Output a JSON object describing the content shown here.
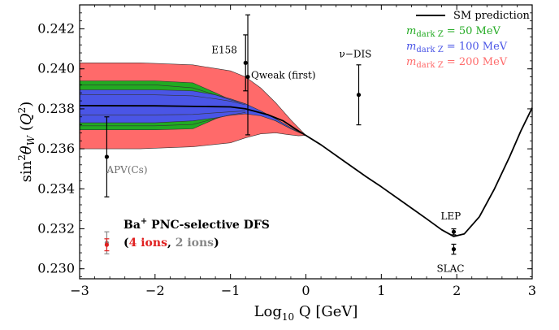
{
  "chart_data": {
    "type": "line",
    "xlabel": "Log",
    "xlabel_sub": "10",
    "xlabel_rest": " Q [GeV]",
    "ylabel_parts": [
      "sin",
      "2",
      "θ",
      "W",
      " (",
      "Q",
      "2",
      ")"
    ],
    "xlim": [
      -3,
      3
    ],
    "ylim": [
      0.2295,
      0.2432
    ],
    "x_ticks": [
      -3,
      -2,
      -1,
      0,
      1,
      2,
      3
    ],
    "x_tick_labels": [
      "−3",
      "−2",
      "−1",
      "0",
      "1",
      "2",
      "3"
    ],
    "y_ticks": [
      0.23,
      0.232,
      0.234,
      0.236,
      0.238,
      0.24,
      0.242
    ],
    "y_tick_labels": [
      "0.230",
      "0.232",
      "0.234",
      "0.236",
      "0.238",
      "0.240",
      "0.242"
    ],
    "legend": {
      "position": "top-right",
      "entries": [
        {
          "label": "SM prediction",
          "color": "#000000"
        },
        {
          "label_main": "m",
          "label_sub": "dark Z",
          "label_rest": " = 50 MeV",
          "color": "#22aa22"
        },
        {
          "label_main": "m",
          "label_sub": "dark Z",
          "label_rest": " = 100 MeV",
          "color": "#4a55e6"
        },
        {
          "label_main": "m",
          "label_sub": "dark Z",
          "label_rest": " = 200 MeV",
          "color": "#ff6a6a"
        }
      ]
    },
    "sm_curve": {
      "color": "#000000",
      "points": [
        [
          -3,
          0.23816
        ],
        [
          -2,
          0.23815
        ],
        [
          -1,
          0.2381
        ],
        [
          -0.8,
          0.238
        ],
        [
          -0.5,
          0.2377
        ],
        [
          -0.3,
          0.2374
        ],
        [
          -0.1,
          0.2369
        ],
        [
          0,
          0.23667
        ],
        [
          0.2,
          0.2362
        ],
        [
          0.5,
          0.2354
        ],
        [
          0.8,
          0.2346
        ],
        [
          1.0,
          0.2341
        ],
        [
          1.3,
          0.2333
        ],
        [
          1.6,
          0.2325
        ],
        [
          1.8,
          0.23195
        ],
        [
          1.96,
          0.23162
        ],
        [
          2.1,
          0.23175
        ],
        [
          2.3,
          0.2326
        ],
        [
          2.5,
          0.234
        ],
        [
          2.7,
          0.2356
        ],
        [
          2.85,
          0.2369
        ],
        [
          3.0,
          0.23805
        ]
      ]
    },
    "bands": [
      {
        "name": "200 MeV",
        "color": "#ff6a6a",
        "upper": [
          [
            -3,
            0.2403
          ],
          [
            -2.2,
            0.2403
          ],
          [
            -1.5,
            0.2402
          ],
          [
            -1.0,
            0.2399
          ],
          [
            -0.8,
            0.2396
          ],
          [
            -0.6,
            0.23905
          ],
          [
            -0.4,
            0.2383
          ],
          [
            -0.2,
            0.23745
          ],
          [
            0,
            0.23667
          ]
        ],
        "lower": [
          [
            -3,
            0.236
          ],
          [
            -2.2,
            0.236
          ],
          [
            -1.5,
            0.2361
          ],
          [
            -1.0,
            0.2363
          ],
          [
            -0.8,
            0.23655
          ],
          [
            -0.6,
            0.23675
          ],
          [
            -0.4,
            0.2368
          ],
          [
            -0.25,
            0.23672
          ],
          [
            -0.1,
            0.23665
          ],
          [
            0,
            0.23667
          ]
        ]
      },
      {
        "name": "50 MeV",
        "color": "#22aa22",
        "upper": [
          [
            -3,
            0.2394
          ],
          [
            -2.0,
            0.2394
          ],
          [
            -1.5,
            0.2393
          ],
          [
            -1.2,
            0.2388
          ],
          [
            -1.0,
            0.23845
          ],
          [
            -0.8,
            0.2382
          ],
          [
            -0.6,
            0.2379
          ],
          [
            -0.4,
            0.2375
          ],
          [
            -0.2,
            0.23705
          ],
          [
            0,
            0.23667
          ]
        ],
        "lower": [
          [
            -3,
            0.23695
          ],
          [
            -2.0,
            0.23695
          ],
          [
            -1.5,
            0.237
          ],
          [
            -1.2,
            0.2375
          ],
          [
            -1.0,
            0.23775
          ],
          [
            -0.8,
            0.23785
          ],
          [
            -0.6,
            0.2377
          ],
          [
            -0.4,
            0.2374
          ],
          [
            -0.2,
            0.237
          ],
          [
            0,
            0.23667
          ]
        ]
      },
      {
        "name": "100 MeV",
        "color": "#4a55e6",
        "upper": [
          [
            -3,
            0.23895
          ],
          [
            -2.0,
            0.23895
          ],
          [
            -1.5,
            0.2389
          ],
          [
            -1.2,
            0.2387
          ],
          [
            -1.0,
            0.2385
          ],
          [
            -0.8,
            0.23825
          ],
          [
            -0.6,
            0.2379
          ],
          [
            -0.4,
            0.2375
          ],
          [
            -0.2,
            0.23705
          ],
          [
            0,
            0.23667
          ]
        ],
        "lower": [
          [
            -3,
            0.2373
          ],
          [
            -2.0,
            0.2373
          ],
          [
            -1.5,
            0.2374
          ],
          [
            -1.2,
            0.23755
          ],
          [
            -1.0,
            0.23768
          ],
          [
            -0.8,
            0.23775
          ],
          [
            -0.6,
            0.23765
          ],
          [
            -0.4,
            0.2374
          ],
          [
            -0.2,
            0.237
          ],
          [
            0,
            0.23667
          ]
        ]
      }
    ],
    "inner_lines": [
      [
        [
          -3,
          0.2392
        ],
        [
          -2.0,
          0.2392
        ],
        [
          -1.5,
          0.23905
        ],
        [
          -1.2,
          0.2387
        ],
        [
          -1.0,
          0.23845
        ],
        [
          -0.8,
          0.23825
        ]
      ],
      [
        [
          -3,
          0.2387
        ],
        [
          -2.0,
          0.2387
        ],
        [
          -1.5,
          0.23865
        ],
        [
          -1.2,
          0.2385
        ],
        [
          -1.0,
          0.23838
        ],
        [
          -0.8,
          0.2382
        ]
      ],
      [
        [
          -3,
          0.2377
        ],
        [
          -2.0,
          0.2377
        ],
        [
          -1.5,
          0.23772
        ],
        [
          -1.2,
          0.2378
        ],
        [
          -1.0,
          0.23785
        ],
        [
          -0.8,
          0.2379
        ]
      ],
      [
        [
          -3,
          0.23715
        ],
        [
          -2.0,
          0.23715
        ],
        [
          -1.5,
          0.23722
        ],
        [
          -1.2,
          0.23752
        ],
        [
          -1.0,
          0.2377
        ],
        [
          -0.8,
          0.23782
        ]
      ]
    ],
    "data_points": [
      {
        "label": "APV(Cs)",
        "x": -2.64,
        "y": 0.2356,
        "err_up": 0.002,
        "err_down": 0.002,
        "color": "#000000",
        "label_color": "#6e6e6e"
      },
      {
        "label": "E158",
        "x": -0.8,
        "y": 0.2403,
        "err_up": 0.0014,
        "err_down": 0.0014,
        "color": "#000000"
      },
      {
        "label": "Qweak (first)",
        "x": -0.77,
        "y": 0.2396,
        "err_up": 0.0031,
        "err_down": 0.0029,
        "color": "#000000"
      },
      {
        "label": "ν−DIS",
        "x": 0.7,
        "y": 0.2387,
        "err_up": 0.0015,
        "err_down": 0.0015,
        "color": "#000000"
      },
      {
        "label": "LEP",
        "x": 1.96,
        "y": 0.23185,
        "err_up": 0.00015,
        "err_down": 0.00015,
        "color": "#000000"
      },
      {
        "label": "SLAC",
        "x": 1.96,
        "y": 0.23098,
        "err_up": 0.00025,
        "err_down": 0.00025,
        "color": "#000000"
      },
      {
        "label": "",
        "x": -2.64,
        "y": 0.2313,
        "err_up": 0.00055,
        "err_down": 0.00055,
        "color": "#888888"
      },
      {
        "label": "",
        "x": -2.64,
        "y": 0.2312,
        "err_up": 0.0003,
        "err_down": 0.0003,
        "color": "#e02020"
      }
    ],
    "annotation_box": {
      "line1_main": "Ba",
      "line1_sup": "+",
      "line1_rest": " PNC-selective DFS",
      "line2_open": "(",
      "line2_red": "4 ions",
      "line2_sep": ", ",
      "line2_gray": "2 ions",
      "line2_close": ")",
      "red_color": "#e02020",
      "gray_color": "#888888"
    }
  }
}
